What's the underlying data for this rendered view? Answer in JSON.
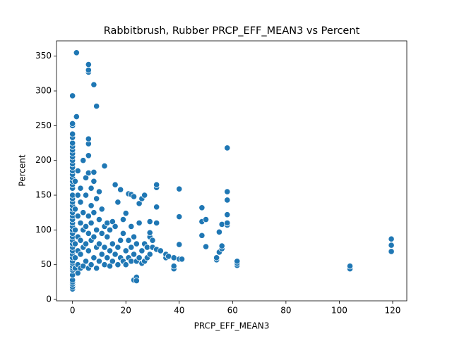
{
  "chart_data": {
    "type": "scatter",
    "title": "Rabbitbrush, Rubber PRCP_EFF_MEAN3 vs Percent",
    "x_label": "PRCP_EFF_MEAN3",
    "y_label": "Percent",
    "color": "#1f77b4",
    "xlim": [
      -6,
      125.3
    ],
    "ylim": [
      -2,
      372
    ],
    "xticks": [
      0,
      20,
      40,
      60,
      80,
      100,
      120
    ],
    "yticks": [
      0,
      50,
      100,
      150,
      200,
      250,
      300,
      350
    ],
    "x": [
      0,
      0,
      0,
      0,
      0,
      0,
      0,
      0,
      0,
      0,
      0,
      0,
      0,
      0,
      0,
      0,
      0,
      0,
      0,
      0,
      0,
      0,
      0,
      0,
      0,
      0,
      0,
      0,
      0,
      0,
      0,
      0,
      0,
      0,
      0,
      0,
      0,
      0,
      0,
      0,
      0,
      0,
      0,
      0,
      0,
      0,
      0,
      0,
      0,
      1,
      1,
      1,
      1,
      1,
      1,
      1.5,
      1.5,
      2,
      2,
      2,
      2,
      2,
      2,
      2,
      3,
      3,
      3,
      3,
      3,
      3,
      4,
      4,
      4,
      4,
      4,
      5,
      5,
      5,
      5,
      5,
      6,
      6,
      6,
      6,
      6,
      6,
      6,
      6,
      6,
      6,
      6,
      7,
      7,
      7,
      7,
      7,
      8,
      8,
      8,
      8,
      8,
      8,
      9,
      9,
      9,
      9,
      9,
      10,
      10,
      10,
      10,
      11,
      11,
      11,
      12,
      12,
      12,
      12,
      13,
      13,
      13,
      14,
      14,
      14,
      15,
      15,
      15,
      16,
      16,
      16,
      17,
      17,
      17,
      18,
      18,
      18,
      19,
      19,
      19,
      20,
      20,
      20,
      21,
      21,
      21,
      22,
      22,
      22,
      22,
      23,
      23,
      23,
      23,
      24,
      24,
      24,
      24,
      25,
      25,
      25,
      26,
      26,
      26,
      27,
      27,
      27,
      28,
      28,
      29,
      29,
      29,
      29,
      30,
      30,
      31.5,
      31.5,
      31.5,
      31.5,
      31.5,
      33,
      35,
      35,
      36,
      38,
      38,
      38,
      40,
      40,
      40,
      40,
      41,
      48.5,
      48.5,
      48.5,
      50,
      50,
      54,
      54,
      55,
      55,
      56,
      56,
      56,
      58,
      58,
      58,
      58,
      58,
      58,
      61.7,
      61.7,
      61.7,
      104,
      104,
      119.5,
      119.5,
      119.5
    ],
    "values": [
      15,
      18,
      22,
      25,
      28,
      35,
      42,
      45,
      48,
      52,
      55,
      60,
      65,
      70,
      75,
      80,
      85,
      90,
      95,
      100,
      105,
      110,
      115,
      120,
      125,
      130,
      135,
      140,
      145,
      150,
      160,
      165,
      170,
      175,
      180,
      185,
      190,
      195,
      200,
      205,
      210,
      215,
      220,
      225,
      233,
      238,
      250,
      253,
      293,
      45,
      60,
      80,
      100,
      130,
      170,
      263,
      355,
      38,
      50,
      70,
      90,
      120,
      150,
      185,
      45,
      65,
      85,
      110,
      140,
      160,
      48,
      75,
      100,
      125,
      200,
      55,
      80,
      105,
      150,
      175,
      45,
      70,
      95,
      120,
      182,
      207,
      224,
      231,
      327,
      330,
      338,
      50,
      85,
      110,
      135,
      160,
      60,
      90,
      125,
      170,
      183,
      309,
      45,
      75,
      100,
      145,
      278,
      55,
      80,
      115,
      155,
      65,
      95,
      130,
      50,
      75,
      105,
      192,
      60,
      90,
      110,
      48,
      70,
      100,
      55,
      80,
      112,
      65,
      105,
      165,
      50,
      75,
      140,
      60,
      85,
      158,
      55,
      95,
      115,
      50,
      70,
      124,
      60,
      85,
      152,
      55,
      75,
      105,
      151,
      28,
      65,
      90,
      148,
      32,
      27,
      55,
      80,
      60,
      110,
      138,
      52,
      70,
      145,
      55,
      80,
      150,
      60,
      75,
      65,
      90,
      96,
      112,
      75,
      85,
      72,
      110,
      133,
      161,
      165,
      70,
      60,
      65,
      62,
      44,
      48,
      60,
      58,
      79,
      119,
      159,
      58,
      92,
      112,
      132,
      76,
      115,
      57,
      60,
      68,
      97,
      73,
      77,
      108,
      107,
      110,
      122,
      143,
      155,
      218,
      49,
      52,
      55,
      44,
      48,
      69,
      78,
      87
    ]
  }
}
